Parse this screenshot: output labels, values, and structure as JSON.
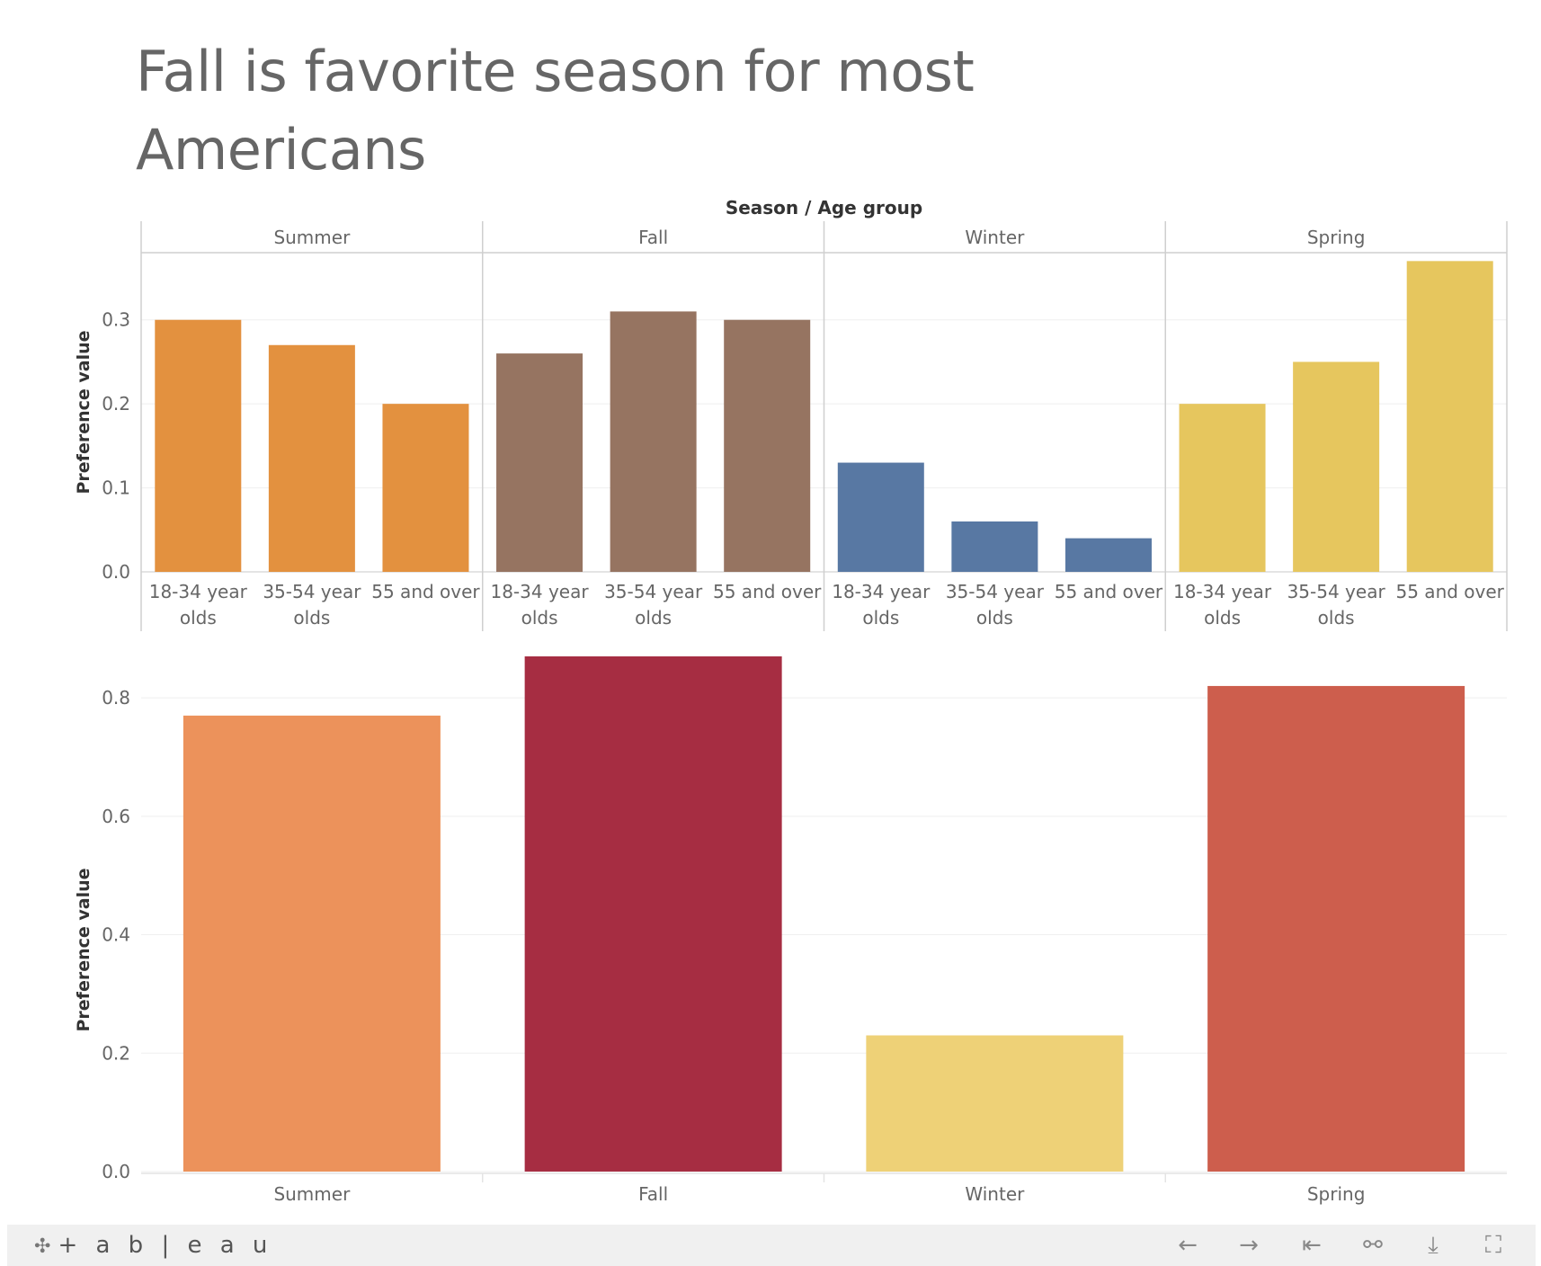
{
  "title": "Fall is favorite season for most Americans",
  "chart_data": [
    {
      "type": "bar",
      "header": "Season  /  Age group",
      "ylabel": "Preference value",
      "ylim": [
        0,
        0.38
      ],
      "yticks": [
        "0.0",
        "0.1",
        "0.2",
        "0.3"
      ],
      "panels": [
        {
          "season": "Summer",
          "color": "#e3913f",
          "groups": [
            {
              "label": [
                "18-34 year",
                "olds"
              ],
              "value": 0.3
            },
            {
              "label": [
                "35-54 year",
                "olds"
              ],
              "value": 0.27
            },
            {
              "label": [
                "55 and over"
              ],
              "value": 0.2
            }
          ]
        },
        {
          "season": "Fall",
          "color": "#967461",
          "groups": [
            {
              "label": [
                "18-34 year",
                "olds"
              ],
              "value": 0.26
            },
            {
              "label": [
                "35-54 year",
                "olds"
              ],
              "value": 0.31
            },
            {
              "label": [
                "55 and over"
              ],
              "value": 0.3
            }
          ]
        },
        {
          "season": "Winter",
          "color": "#5878a3",
          "groups": [
            {
              "label": [
                "18-34 year",
                "olds"
              ],
              "value": 0.13
            },
            {
              "label": [
                "35-54 year",
                "olds"
              ],
              "value": 0.06
            },
            {
              "label": [
                "55 and over"
              ],
              "value": 0.04
            }
          ]
        },
        {
          "season": "Spring",
          "color": "#e6c65e",
          "groups": [
            {
              "label": [
                "18-34 year",
                "olds"
              ],
              "value": 0.2
            },
            {
              "label": [
                "35-54 year",
                "olds"
              ],
              "value": 0.25
            },
            {
              "label": [
                "55 and over"
              ],
              "value": 0.37
            }
          ]
        }
      ]
    },
    {
      "type": "bar",
      "ylabel": "Preference value",
      "ylim": [
        0,
        0.87
      ],
      "yticks": [
        "0.0",
        "0.2",
        "0.4",
        "0.6",
        "0.8"
      ],
      "categories": [
        "Summer",
        "Fall",
        "Winter",
        "Spring"
      ],
      "values": [
        0.77,
        0.87,
        0.23,
        0.82
      ],
      "colors": [
        "#ec925b",
        "#a62d42",
        "#eed177",
        "#cd5e4d"
      ]
    }
  ],
  "footer": {
    "logo_text": "+ a b | e a u",
    "buttons": [
      {
        "name": "undo-button",
        "glyph": "←"
      },
      {
        "name": "redo-button",
        "glyph": "→"
      },
      {
        "name": "revert-button",
        "glyph": "⇤"
      },
      {
        "name": "share-button",
        "glyph": "⚯"
      },
      {
        "name": "download-button",
        "glyph": "⤓"
      },
      {
        "name": "fullscreen-button",
        "glyph": "⛶"
      }
    ]
  }
}
